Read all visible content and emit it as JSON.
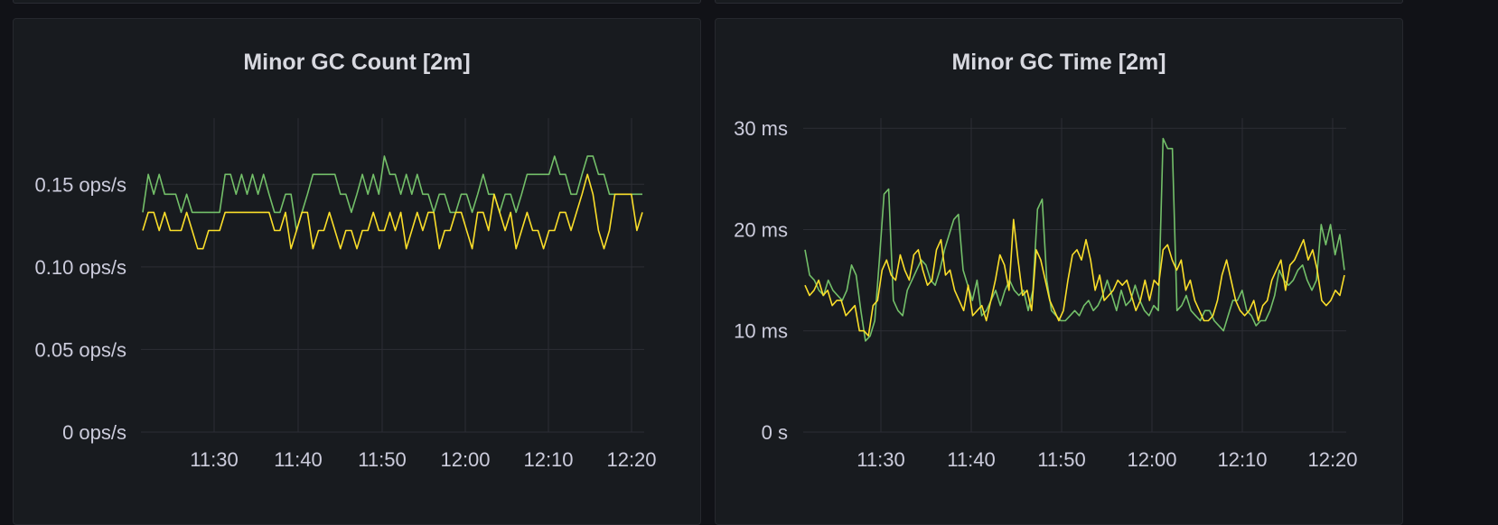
{
  "colors": {
    "green": "#73bf69",
    "yellow": "#fade2a"
  },
  "chart_data": [
    {
      "type": "line",
      "title": "Minor GC Count [2m]",
      "unit": "ops/s",
      "x_ticks": [
        "11:30",
        "11:40",
        "11:50",
        "12:00",
        "12:10",
        "12:20"
      ],
      "y_ticks": [
        "0 ops/s",
        "0.05 ops/s",
        "0.10 ops/s",
        "0.15 ops/s"
      ],
      "x_range": [
        "11:22",
        "12:21"
      ],
      "ylim": [
        0,
        0.19
      ],
      "grid": true,
      "series": [
        {
          "color": "green",
          "values": [
            0.133,
            0.156,
            0.144,
            0.156,
            0.144,
            0.144,
            0.144,
            0.133,
            0.144,
            0.133,
            0.133,
            0.133,
            0.133,
            0.133,
            0.133,
            0.156,
            0.156,
            0.144,
            0.156,
            0.144,
            0.156,
            0.144,
            0.156,
            0.144,
            0.133,
            0.133,
            0.144,
            0.144,
            0.122,
            0.133,
            0.144,
            0.156,
            0.156,
            0.156,
            0.156,
            0.156,
            0.144,
            0.144,
            0.133,
            0.144,
            0.156,
            0.144,
            0.156,
            0.144,
            0.167,
            0.156,
            0.156,
            0.144,
            0.156,
            0.144,
            0.156,
            0.144,
            0.144,
            0.133,
            0.144,
            0.144,
            0.133,
            0.133,
            0.144,
            0.144,
            0.133,
            0.144,
            0.156,
            0.144,
            0.144,
            0.133,
            0.144,
            0.144,
            0.133,
            0.144,
            0.156,
            0.156,
            0.156,
            0.156,
            0.156,
            0.167,
            0.156,
            0.156,
            0.144,
            0.144,
            0.156,
            0.167,
            0.167,
            0.156,
            0.156,
            0.144,
            0.144,
            0.144,
            0.144,
            0.144,
            0.144,
            0.144
          ]
        },
        {
          "color": "yellow",
          "values": [
            0.122,
            0.133,
            0.133,
            0.122,
            0.133,
            0.122,
            0.122,
            0.122,
            0.133,
            0.122,
            0.111,
            0.111,
            0.122,
            0.122,
            0.122,
            0.133,
            0.133,
            0.133,
            0.133,
            0.133,
            0.133,
            0.133,
            0.133,
            0.133,
            0.122,
            0.122,
            0.133,
            0.111,
            0.122,
            0.133,
            0.133,
            0.111,
            0.122,
            0.122,
            0.133,
            0.122,
            0.111,
            0.122,
            0.122,
            0.111,
            0.122,
            0.122,
            0.133,
            0.122,
            0.122,
            0.133,
            0.122,
            0.133,
            0.111,
            0.122,
            0.133,
            0.122,
            0.133,
            0.133,
            0.111,
            0.122,
            0.122,
            0.133,
            0.133,
            0.122,
            0.111,
            0.133,
            0.133,
            0.122,
            0.144,
            0.133,
            0.122,
            0.133,
            0.111,
            0.122,
            0.133,
            0.122,
            0.122,
            0.111,
            0.122,
            0.122,
            0.133,
            0.133,
            0.122,
            0.133,
            0.144,
            0.156,
            0.144,
            0.122,
            0.111,
            0.122,
            0.144,
            0.144,
            0.144,
            0.144,
            0.122,
            0.133
          ]
        }
      ]
    },
    {
      "type": "line",
      "title": "Minor GC Time [2m]",
      "unit": "ms",
      "x_ticks": [
        "11:30",
        "11:40",
        "11:50",
        "12:00",
        "12:10",
        "12:20"
      ],
      "y_ticks": [
        "0 s",
        "10 ms",
        "20 ms",
        "30 ms"
      ],
      "x_range": [
        "11:22",
        "12:22"
      ],
      "ylim": [
        0,
        31
      ],
      "grid": true,
      "series": [
        {
          "color": "green",
          "values": [
            18,
            15.5,
            15,
            14,
            13.5,
            15,
            14,
            13.5,
            13,
            14,
            16.5,
            15.5,
            12,
            9,
            9.5,
            11,
            17,
            23.5,
            24,
            13,
            12,
            11.5,
            14,
            15,
            16,
            17,
            16.5,
            15,
            14.5,
            16,
            18,
            19.5,
            21,
            21.5,
            16,
            14.5,
            13,
            15,
            11.5,
            12,
            13,
            14,
            12.5,
            14,
            15,
            14,
            13.5,
            14,
            12,
            14,
            22,
            23,
            15,
            12,
            11.5,
            11,
            11,
            11.5,
            12,
            11.5,
            12.5,
            13,
            12,
            12.5,
            13.5,
            15,
            13.5,
            12,
            14,
            12.5,
            13,
            14.5,
            13,
            12,
            11.5,
            12.5,
            12,
            29,
            28,
            28,
            12,
            12.5,
            13.5,
            12,
            11.5,
            11,
            12,
            12,
            11,
            10.5,
            10,
            11.5,
            13,
            13,
            14,
            12,
            11.5,
            10.5,
            11,
            11,
            12,
            13.5,
            16,
            15,
            14.5,
            15,
            16,
            16.5,
            15,
            14,
            15,
            20.5,
            18.5,
            20.5,
            17.5,
            19.5,
            16
          ]
        },
        {
          "color": "yellow",
          "values": [
            14.5,
            13.5,
            14,
            15,
            13.5,
            14,
            12.5,
            13,
            13,
            11.5,
            12,
            12.5,
            10,
            10,
            9.5,
            12.5,
            13,
            16,
            17,
            15.5,
            15,
            17.5,
            16,
            15,
            17.5,
            18,
            16,
            14.5,
            15,
            18,
            19,
            15.5,
            16,
            14,
            13,
            12,
            14.5,
            11.5,
            12,
            12.5,
            11,
            13,
            15,
            17.5,
            16.5,
            14,
            21,
            17,
            13.5,
            14,
            12,
            18,
            17,
            15,
            13,
            12,
            11,
            12,
            15,
            17.5,
            18,
            17,
            19,
            17,
            14,
            15.5,
            13,
            13.5,
            14,
            15,
            14.5,
            15,
            13.5,
            12,
            13,
            15,
            13,
            15,
            14.5,
            18,
            18.5,
            17,
            16,
            17,
            14,
            15,
            13,
            12,
            11,
            11,
            11.5,
            13,
            15.5,
            17,
            15,
            13,
            12,
            11.5,
            12,
            13,
            11,
            12.5,
            13,
            15,
            16,
            17,
            14,
            16.5,
            17,
            18,
            19,
            17,
            18,
            16,
            13,
            12.5,
            13,
            14,
            13.5,
            15.5
          ]
        }
      ]
    }
  ]
}
